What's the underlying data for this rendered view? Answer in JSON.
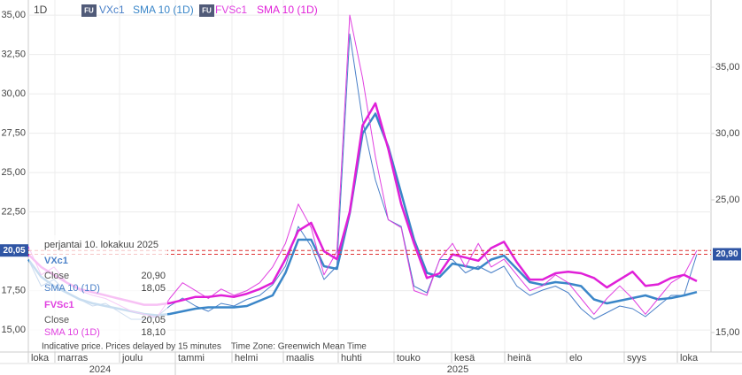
{
  "chart_data": {
    "type": "line",
    "interval": "1D",
    "series": [
      {
        "name": "VXc1",
        "color": "#4a80c8",
        "axis": "y2",
        "values": [
          20.5,
          18.5,
          19.0,
          18.0,
          17.5,
          17.0,
          17.2,
          16.6,
          16.0,
          16.0,
          16.2,
          17.0,
          17.6,
          17.0,
          16.6,
          17.2,
          17.0,
          17.5,
          17.8,
          18.6,
          20.0,
          23.0,
          21.5,
          19.0,
          20.0,
          37.5,
          31.0,
          26.5,
          23.5,
          23.0,
          18.5,
          18.0,
          20.5,
          20.5,
          19.5,
          20.0,
          19.5,
          20.0,
          18.5,
          17.8,
          18.2,
          18.5,
          18.0,
          16.8,
          16.0,
          16.5,
          17.0,
          16.8,
          16.2,
          17.0,
          17.8,
          17.8,
          20.9
        ]
      },
      {
        "name": "SMA 10 (1D)",
        "color": "#3a86c8",
        "axis": "y2",
        "values": [
          20.5,
          19.2,
          18.5,
          18.0,
          17.5,
          17.2,
          17.0,
          16.8,
          16.6,
          16.4,
          16.3,
          16.4,
          16.6,
          16.8,
          16.9,
          16.9,
          16.9,
          17.0,
          17.4,
          17.8,
          19.5,
          22.0,
          22.0,
          20.0,
          19.8,
          24.0,
          30.0,
          31.5,
          29.0,
          25.5,
          22.0,
          19.5,
          19.2,
          20.2,
          20.0,
          19.8,
          20.5,
          20.8,
          19.8,
          18.8,
          18.6,
          18.8,
          18.7,
          18.5,
          17.5,
          17.2,
          17.4,
          17.6,
          17.8,
          17.5,
          17.6,
          17.8,
          18.05
        ]
      },
      {
        "name": "FVSc1",
        "color": "#e040e0",
        "axis": "y",
        "values": [
          20.3,
          18.5,
          19.0,
          18.0,
          17.5,
          17.2,
          17.0,
          16.6,
          16.2,
          16.0,
          15.8,
          17.0,
          18.0,
          17.5,
          17.0,
          17.6,
          17.2,
          17.5,
          18.0,
          19.0,
          20.5,
          23.0,
          21.5,
          18.5,
          20.0,
          35.0,
          31.0,
          26.0,
          22.0,
          21.5,
          17.5,
          17.2,
          19.5,
          20.5,
          19.0,
          20.5,
          19.0,
          19.5,
          18.5,
          17.5,
          17.8,
          18.5,
          18.0,
          17.0,
          16.0,
          17.0,
          17.8,
          17.0,
          16.0,
          17.0,
          18.0,
          18.5,
          20.05
        ]
      },
      {
        "name": "SMA 10 (1D)",
        "color": "#e020d8",
        "axis": "y",
        "values": [
          19.8,
          19.0,
          18.5,
          18.0,
          17.6,
          17.4,
          17.2,
          17.0,
          16.8,
          16.6,
          16.6,
          16.7,
          16.9,
          17.1,
          17.1,
          17.2,
          17.1,
          17.3,
          17.6,
          18.0,
          19.5,
          21.3,
          21.8,
          20.0,
          19.5,
          22.5,
          28.0,
          29.4,
          26.5,
          23.0,
          20.5,
          18.3,
          18.6,
          19.8,
          19.6,
          19.4,
          20.2,
          20.6,
          19.3,
          18.2,
          18.2,
          18.6,
          18.7,
          18.6,
          18.3,
          17.7,
          18.2,
          18.7,
          17.8,
          17.9,
          18.3,
          18.5,
          18.1
        ]
      }
    ],
    "ylim": [
      13.6,
      35.96
    ],
    "yticks": [
      {
        "value": 15,
        "label": "15,00"
      },
      {
        "value": 17.5,
        "label": "17,50"
      },
      {
        "value": 22.5,
        "label": "22,50"
      },
      {
        "value": 25,
        "label": "25,00"
      },
      {
        "value": 27.5,
        "label": "27,50"
      },
      {
        "value": 30,
        "label": "30,00"
      },
      {
        "value": 32.5,
        "label": "32,50"
      },
      {
        "value": 35,
        "label": "35,00"
      }
    ],
    "y2lim": [
      13.53,
      40.07
    ],
    "y2ticks": [
      {
        "value": 15,
        "label": "15,00"
      },
      {
        "value": 25,
        "label": "25,00"
      },
      {
        "value": 30,
        "label": "30,00"
      },
      {
        "value": 35,
        "label": "35,00"
      }
    ],
    "markers": [
      {
        "axis": "y",
        "value": 20.05,
        "label": "20,05"
      },
      {
        "axis": "y2",
        "value": 20.9,
        "label": "20,90"
      }
    ],
    "months": [
      "loka",
      "marras",
      "joulu",
      "tammi",
      "helmi",
      "maalis",
      "huhti",
      "touko",
      "kesä",
      "heinä",
      "elo",
      "syys",
      "loka"
    ],
    "years": [
      "2024",
      "2025"
    ],
    "grid": true,
    "badge": "FU",
    "tooltip": {
      "date": "perjantai 10. lokakuu 2025",
      "groups": [
        {
          "name": "VXc1",
          "rows": [
            [
              "Close",
              "20,90"
            ],
            [
              "SMA 10 (1D)",
              "18,05"
            ]
          ]
        },
        {
          "name": "FVSc1",
          "rows": [
            [
              "Close",
              "20,05"
            ],
            [
              "SMA 10 (1D)",
              "18,10"
            ]
          ]
        }
      ]
    },
    "footnote": "Indicative price. Prices delayed by 15 minutes    Time Zone: Greenwich Mean Time"
  }
}
